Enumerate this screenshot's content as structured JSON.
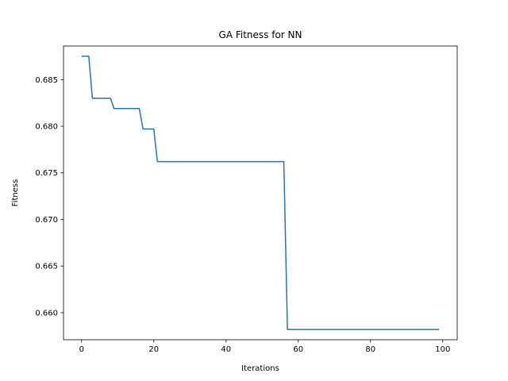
{
  "chart_data": {
    "type": "line",
    "title": "GA Fitness for NN",
    "xlabel": "Iterations",
    "ylabel": "Fitness",
    "xlim": [
      -5,
      104
    ],
    "ylim": [
      0.6571,
      0.6886
    ],
    "xticks": [
      0,
      20,
      40,
      60,
      80,
      100
    ],
    "yticks": [
      0.66,
      0.665,
      0.67,
      0.675,
      0.68,
      0.685
    ],
    "ytick_format_decimals": 3,
    "grid": false,
    "line_color": "#1f77b4",
    "series": [
      {
        "values": [
          [
            0,
            0.6875
          ],
          [
            2,
            0.6875
          ],
          [
            3,
            0.683
          ],
          [
            8,
            0.683
          ],
          [
            9,
            0.6819
          ],
          [
            16,
            0.6819
          ],
          [
            17,
            0.6797
          ],
          [
            20,
            0.6797
          ],
          [
            21,
            0.6762
          ],
          [
            56,
            0.6762
          ],
          [
            57,
            0.6582
          ],
          [
            99,
            0.6582
          ]
        ]
      }
    ]
  }
}
